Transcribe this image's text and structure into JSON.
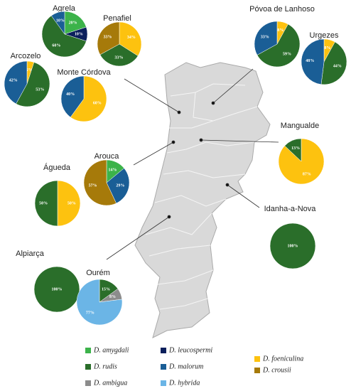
{
  "pies": [
    {
      "name": "Agrela",
      "values": [
        20,
        10,
        60,
        10
      ],
      "value_labels": [
        "20%",
        "10%",
        "60%",
        "10%"
      ],
      "colors": [
        "#3cb34a",
        "#0b1f5c",
        "#2a6e2a",
        "#1a5e96"
      ]
    },
    {
      "name": "Penafiel",
      "values": [
        34,
        33,
        33
      ],
      "value_labels": [
        "34%",
        "33%",
        "33%"
      ],
      "colors": [
        "#fdc20f",
        "#2a6e2a",
        "#a67a0a"
      ]
    },
    {
      "name": "Arcozelo",
      "values": [
        5,
        53,
        42
      ],
      "value_labels": [
        "5%",
        "53%",
        "42%"
      ],
      "colors": [
        "#fdc20f",
        "#2a6e2a",
        "#1a5e96"
      ]
    },
    {
      "name": "Monte Córdova",
      "values": [
        60,
        40
      ],
      "value_labels": [
        "60%",
        "40%"
      ],
      "colors": [
        "#fdc20f",
        "#1a5e96"
      ]
    },
    {
      "name": "Póvoa de Lanhoso",
      "values": [
        8,
        59,
        33
      ],
      "value_labels": [
        "8%",
        "59%",
        "33%"
      ],
      "colors": [
        "#fdc20f",
        "#2a6e2a",
        "#1a5e96"
      ]
    },
    {
      "name": "Urgezes",
      "values": [
        8,
        44,
        48
      ],
      "value_labels": [
        "8%",
        "44%",
        "48%"
      ],
      "colors": [
        "#fdc20f",
        "#2a6e2a",
        "#1a5e96"
      ]
    },
    {
      "name": "Mangualde",
      "values": [
        87,
        13
      ],
      "value_labels": [
        "87%",
        "13%"
      ],
      "colors": [
        "#fdc20f",
        "#2a6e2a"
      ]
    },
    {
      "name": "Águeda",
      "values": [
        50,
        50
      ],
      "value_labels": [
        "50%",
        "50%"
      ],
      "colors": [
        "#fdc20f",
        "#2a6e2a"
      ]
    },
    {
      "name": "Arouca",
      "values": [
        14,
        29,
        57
      ],
      "value_labels": [
        "14%",
        "29%",
        "57%"
      ],
      "colors": [
        "#3cb34a",
        "#1a5e96",
        "#a67a0a"
      ]
    },
    {
      "name": "Idanha-a-Nova",
      "values": [
        100
      ],
      "value_labels": [
        "100%"
      ],
      "colors": [
        "#2a6e2a"
      ]
    },
    {
      "name": "Alpiarça",
      "values": [
        100
      ],
      "value_labels": [
        "100%"
      ],
      "colors": [
        "#2a6e2a"
      ]
    },
    {
      "name": "Ourém",
      "values": [
        15,
        8,
        77
      ],
      "value_labels": [
        "15%",
        "8%",
        "77%"
      ],
      "colors": [
        "#2a6e2a",
        "#8c8c8c",
        "#6bb5e6"
      ]
    }
  ],
  "legend": [
    {
      "label": "D. amygdali",
      "color": "#3cb34a"
    },
    {
      "label": "D. leucospermi",
      "color": "#0b1f5c"
    },
    {
      "label": "D. foeniculina",
      "color": "#fdc20f"
    },
    {
      "label": "D. rudis",
      "color": "#2a6e2a"
    },
    {
      "label": "D. malorum",
      "color": "#1a5e96"
    },
    {
      "label": "D. crousii",
      "color": "#a67a0a"
    },
    {
      "label": "D. ambigua",
      "color": "#8c8c8c"
    },
    {
      "label": "D. hybrida",
      "color": "#6bb5e6"
    }
  ]
}
